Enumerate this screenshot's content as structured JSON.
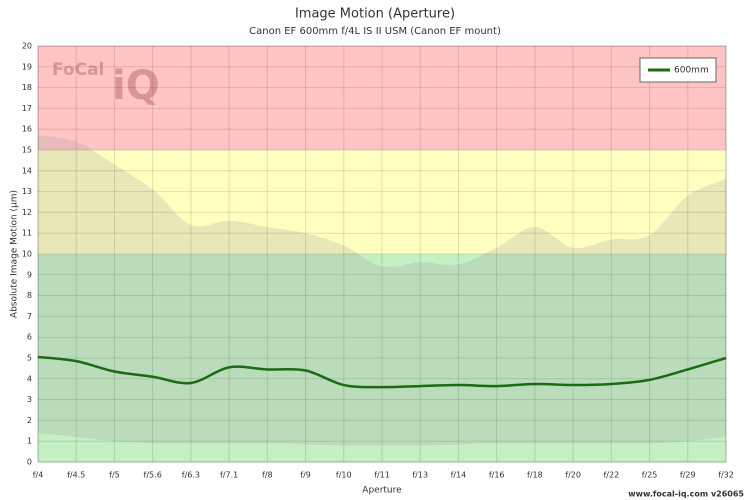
{
  "chart_data": {
    "type": "line",
    "title": "Image Motion (Aperture)",
    "subtitle": "Canon EF 600mm f/4L IS II USM (Canon EF mount)",
    "x_label": "Aperture",
    "y_label": "Absolute Image Motion (µm)",
    "footer": "www.focal-iq.com  v26065",
    "logo": [
      "FoCal",
      "iQ"
    ],
    "categories": [
      "f/4",
      "f/4.5",
      "f/5",
      "f/5.6",
      "f/6.3",
      "f/7.1",
      "f/8",
      "f/9",
      "f/10",
      "f/11",
      "f/13",
      "f/14",
      "f/16",
      "f/18",
      "f/20",
      "f/22",
      "f/25",
      "f/29",
      "f/32"
    ],
    "series": [
      {
        "name": "600mm",
        "color": "#1a6b12",
        "values": [
          5.05,
          4.85,
          4.35,
          4.1,
          3.8,
          4.55,
          4.45,
          4.4,
          3.7,
          3.6,
          3.65,
          3.7,
          3.65,
          3.75,
          3.7,
          3.75,
          3.95,
          4.45,
          5.0
        ]
      }
    ],
    "band": {
      "color": "#a0a0a0",
      "upper": [
        15.7,
        15.4,
        14.3,
        13.1,
        11.4,
        11.6,
        11.3,
        11.0,
        10.4,
        9.4,
        9.6,
        9.5,
        10.3,
        11.3,
        10.3,
        10.7,
        10.9,
        12.8,
        13.6
      ],
      "lower": [
        1.4,
        1.2,
        1.0,
        0.9,
        0.9,
        0.9,
        0.9,
        0.85,
        0.8,
        0.8,
        0.8,
        0.85,
        0.9,
        0.9,
        0.9,
        0.9,
        0.9,
        1.0,
        1.2
      ]
    },
    "zones": [
      {
        "from": 0,
        "to": 10,
        "color": "#c4f0c4"
      },
      {
        "from": 10,
        "to": 15,
        "color": "#ffffc0"
      },
      {
        "from": 15,
        "to": 20,
        "color": "#ffc4c4"
      }
    ],
    "ylim": [
      0,
      20
    ],
    "yticks": [
      0,
      1,
      2,
      3,
      4,
      5,
      6,
      7,
      8,
      9,
      10,
      11,
      12,
      13,
      14,
      15,
      16,
      17,
      18,
      19,
      20
    ],
    "grid": true,
    "legend": "top-right"
  }
}
